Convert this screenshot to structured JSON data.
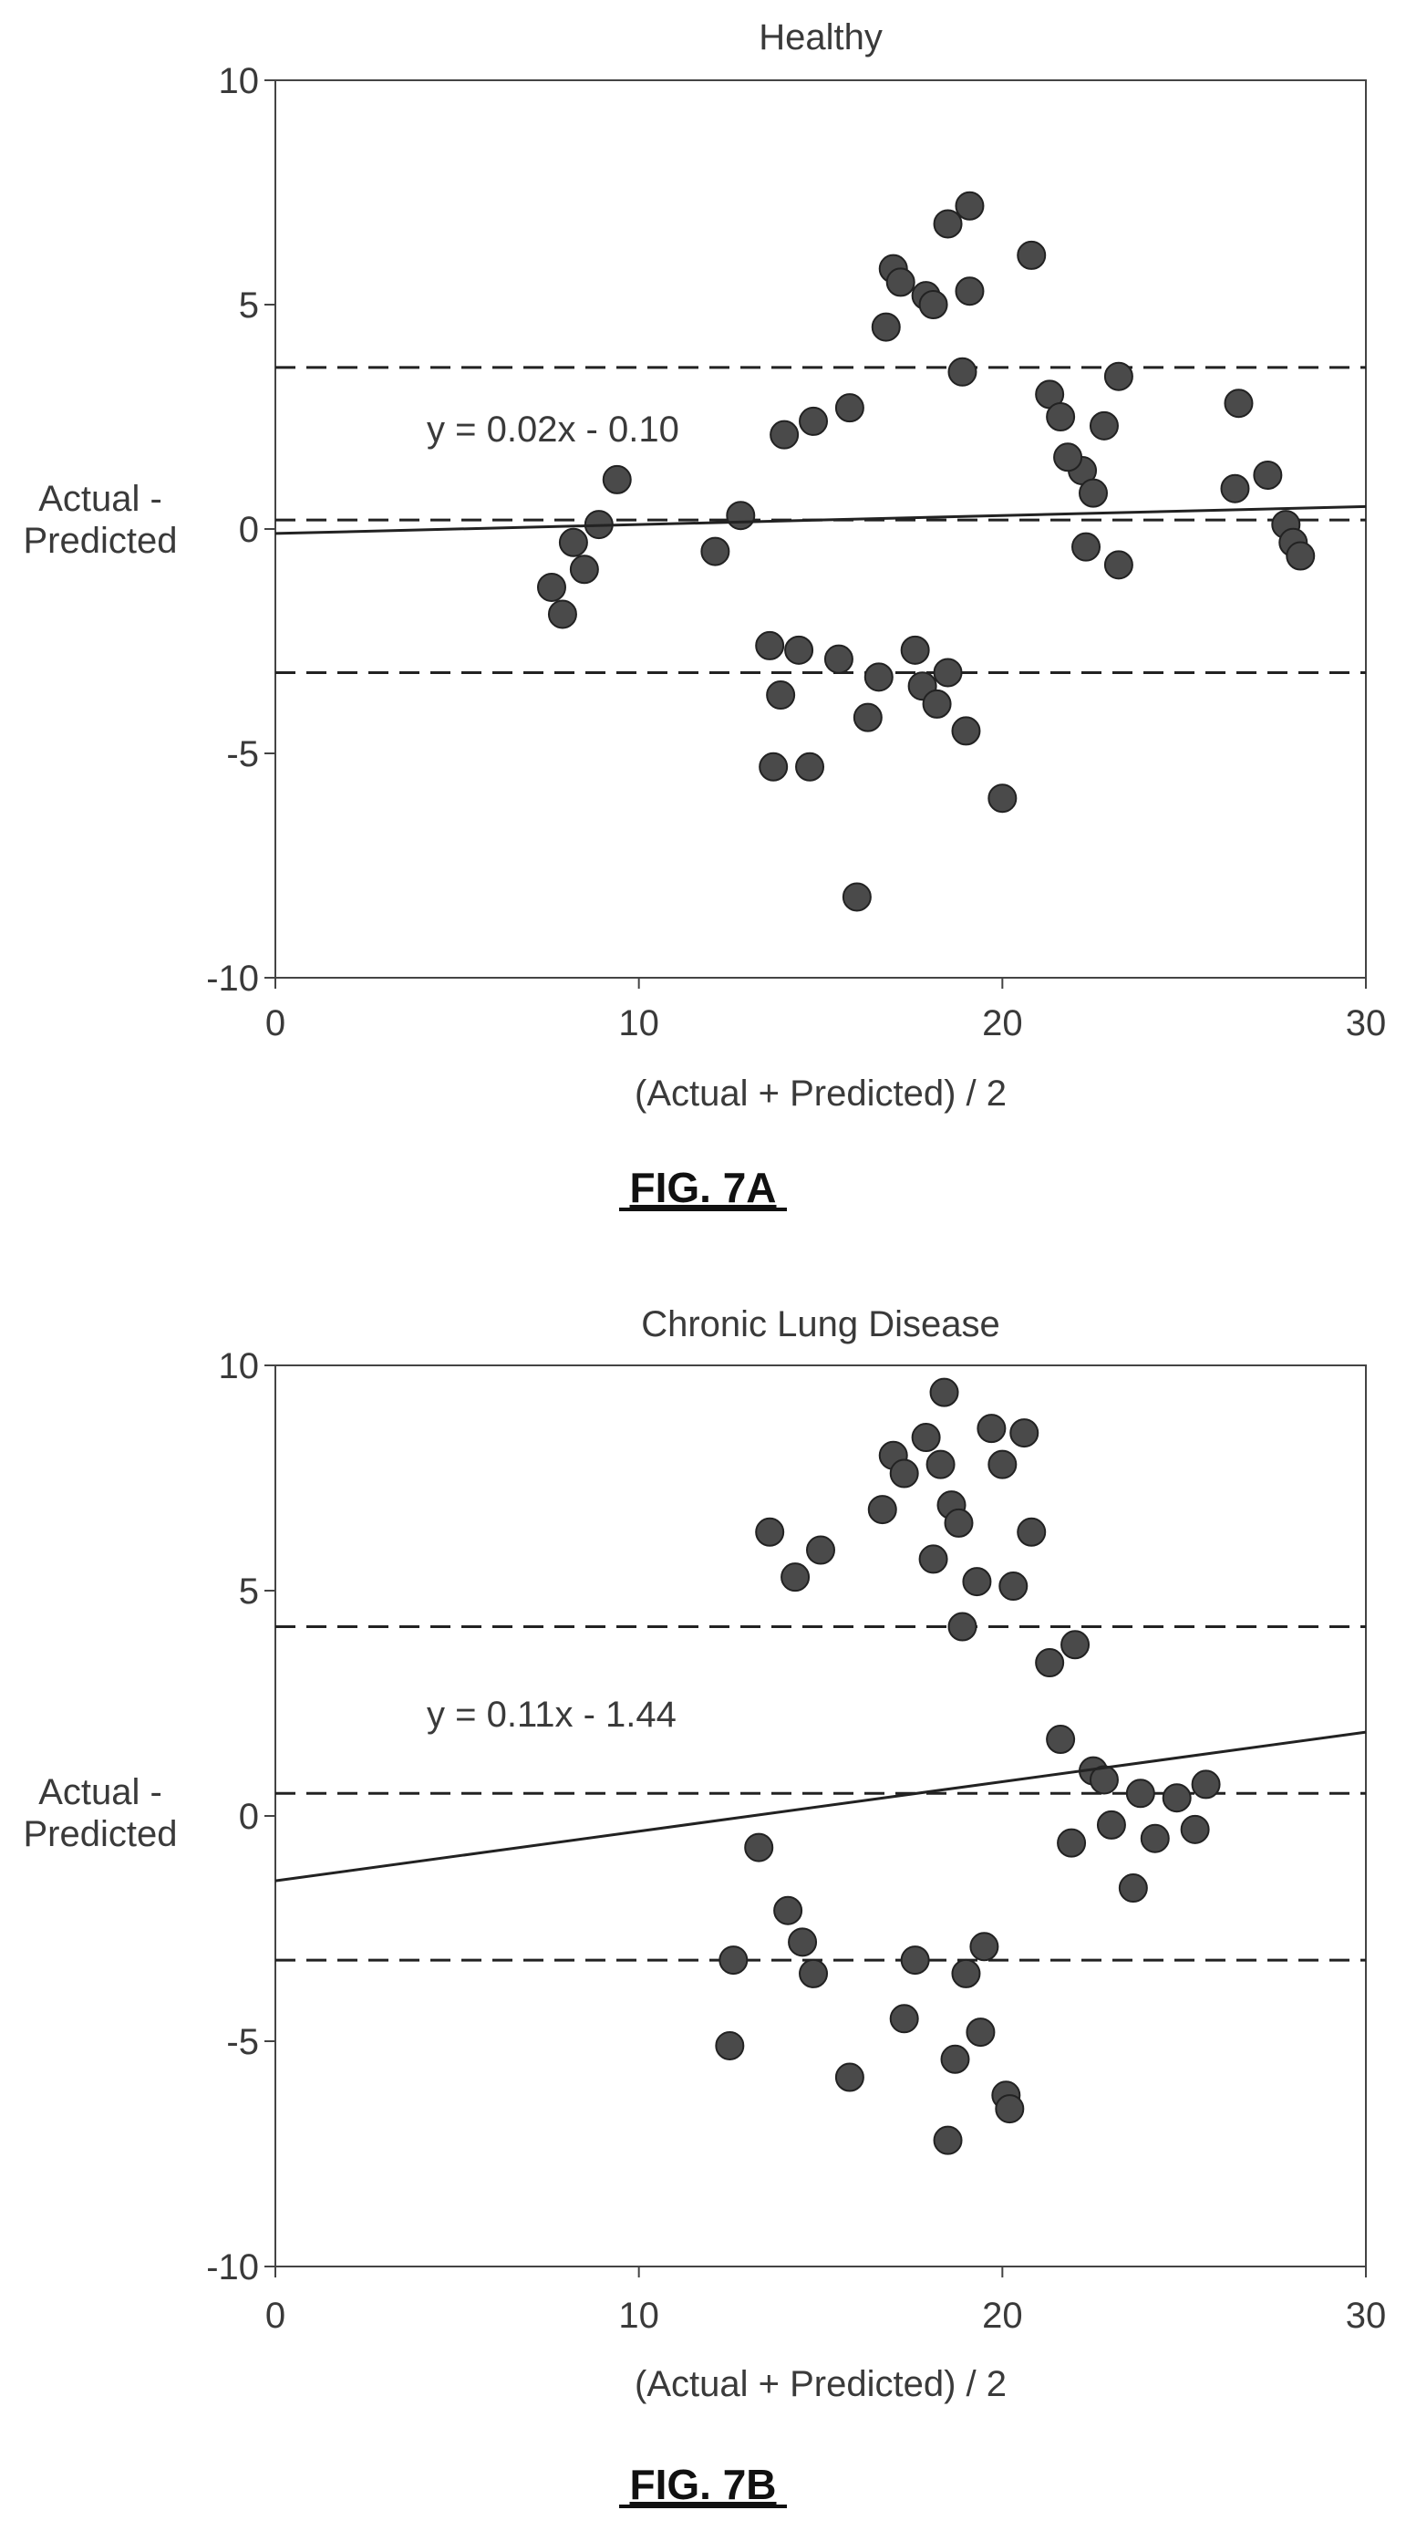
{
  "chart_data": [
    {
      "type": "scatter",
      "title": "Healthy",
      "xlabel": "(Actual + Predicted) / 2",
      "ylabel": [
        "Actual -",
        "Predicted"
      ],
      "xlim": [
        0,
        30
      ],
      "ylim": [
        -10,
        10
      ],
      "xticks": [
        "0",
        "10",
        "20",
        "30"
      ],
      "yticks": [
        "10",
        "5",
        "0",
        "-5",
        "-10"
      ],
      "regression_label": "y = 0.02x - 0.10",
      "regression": {
        "slope": 0.02,
        "intercept": -0.1
      },
      "limits": {
        "mean": 0.2,
        "upper": 3.6,
        "lower": -3.2
      },
      "caption": "FIG. 7A",
      "points": [
        [
          7.6,
          -1.3
        ],
        [
          7.9,
          -1.9
        ],
        [
          8.2,
          -0.3
        ],
        [
          8.5,
          -0.9
        ],
        [
          8.9,
          0.1
        ],
        [
          9.4,
          1.1
        ],
        [
          12.1,
          -0.5
        ],
        [
          12.8,
          0.3
        ],
        [
          13.6,
          -2.6
        ],
        [
          13.7,
          -5.3
        ],
        [
          13.9,
          -3.7
        ],
        [
          14.0,
          2.1
        ],
        [
          14.4,
          -2.7
        ],
        [
          14.7,
          -5.3
        ],
        [
          14.8,
          2.4
        ],
        [
          15.5,
          -2.9
        ],
        [
          15.8,
          2.7
        ],
        [
          16.0,
          -8.2
        ],
        [
          16.3,
          -4.2
        ],
        [
          16.6,
          -3.3
        ],
        [
          16.8,
          4.5
        ],
        [
          17.0,
          5.8
        ],
        [
          17.2,
          5.5
        ],
        [
          17.6,
          -2.7
        ],
        [
          17.8,
          -3.5
        ],
        [
          17.9,
          5.2
        ],
        [
          18.1,
          5.0
        ],
        [
          18.2,
          -3.9
        ],
        [
          18.5,
          -3.2
        ],
        [
          18.5,
          6.8
        ],
        [
          18.9,
          3.5
        ],
        [
          19.0,
          -4.5
        ],
        [
          19.1,
          7.2
        ],
        [
          19.1,
          5.3
        ],
        [
          20.0,
          -6.0
        ],
        [
          20.8,
          6.1
        ],
        [
          21.3,
          3.0
        ],
        [
          21.6,
          2.5
        ],
        [
          22.2,
          1.3
        ],
        [
          22.8,
          2.3
        ],
        [
          23.2,
          3.4
        ],
        [
          23.2,
          -0.8
        ],
        [
          26.4,
          0.9
        ],
        [
          26.5,
          2.8
        ],
        [
          27.3,
          1.2
        ],
        [
          27.8,
          0.1
        ],
        [
          28.0,
          -0.3
        ],
        [
          28.2,
          -0.6
        ],
        [
          22.5,
          0.8
        ],
        [
          22.3,
          -0.4
        ],
        [
          21.8,
          1.6
        ]
      ]
    },
    {
      "type": "scatter",
      "title": "Chronic Lung Disease",
      "xlabel": "(Actual + Predicted) / 2",
      "ylabel": [
        "Actual -",
        "Predicted"
      ],
      "xlim": [
        0,
        30
      ],
      "ylim": [
        -10,
        10
      ],
      "xticks": [
        "0",
        "10",
        "20",
        "30"
      ],
      "yticks": [
        "10",
        "5",
        "0",
        "-5",
        "-10"
      ],
      "regression_label": "y = 0.11x - 1.44",
      "regression": {
        "slope": 0.11,
        "intercept": -1.44
      },
      "limits": {
        "mean": 0.5,
        "upper": 4.2,
        "lower": -3.2
      },
      "caption": "FIG. 7B",
      "points": [
        [
          12.5,
          -5.1
        ],
        [
          12.6,
          -3.2
        ],
        [
          13.3,
          -0.7
        ],
        [
          13.6,
          6.3
        ],
        [
          14.1,
          -2.1
        ],
        [
          14.3,
          5.3
        ],
        [
          14.5,
          -2.8
        ],
        [
          14.8,
          -3.5
        ],
        [
          15.0,
          5.9
        ],
        [
          15.8,
          -5.8
        ],
        [
          16.7,
          6.8
        ],
        [
          17.0,
          8.0
        ],
        [
          17.3,
          7.6
        ],
        [
          17.3,
          -4.5
        ],
        [
          17.6,
          -3.2
        ],
        [
          17.9,
          8.4
        ],
        [
          18.1,
          5.7
        ],
        [
          18.3,
          7.8
        ],
        [
          18.4,
          9.4
        ],
        [
          18.5,
          -7.2
        ],
        [
          18.6,
          6.9
        ],
        [
          18.7,
          -5.4
        ],
        [
          18.8,
          6.5
        ],
        [
          18.9,
          4.2
        ],
        [
          19.0,
          -3.5
        ],
        [
          19.3,
          5.2
        ],
        [
          19.4,
          -4.8
        ],
        [
          19.5,
          -2.9
        ],
        [
          19.7,
          8.6
        ],
        [
          20.0,
          7.8
        ],
        [
          20.1,
          -6.2
        ],
        [
          20.2,
          -6.5
        ],
        [
          20.3,
          5.1
        ],
        [
          20.6,
          8.5
        ],
        [
          20.8,
          6.3
        ],
        [
          21.3,
          3.4
        ],
        [
          21.6,
          1.7
        ],
        [
          22.0,
          3.8
        ],
        [
          22.5,
          1.0
        ],
        [
          23.0,
          -0.2
        ],
        [
          23.6,
          -1.6
        ],
        [
          23.8,
          0.5
        ],
        [
          24.2,
          -0.5
        ],
        [
          24.8,
          0.4
        ],
        [
          25.3,
          -0.3
        ],
        [
          25.6,
          0.7
        ],
        [
          22.8,
          0.8
        ],
        [
          21.9,
          -0.6
        ]
      ]
    }
  ]
}
